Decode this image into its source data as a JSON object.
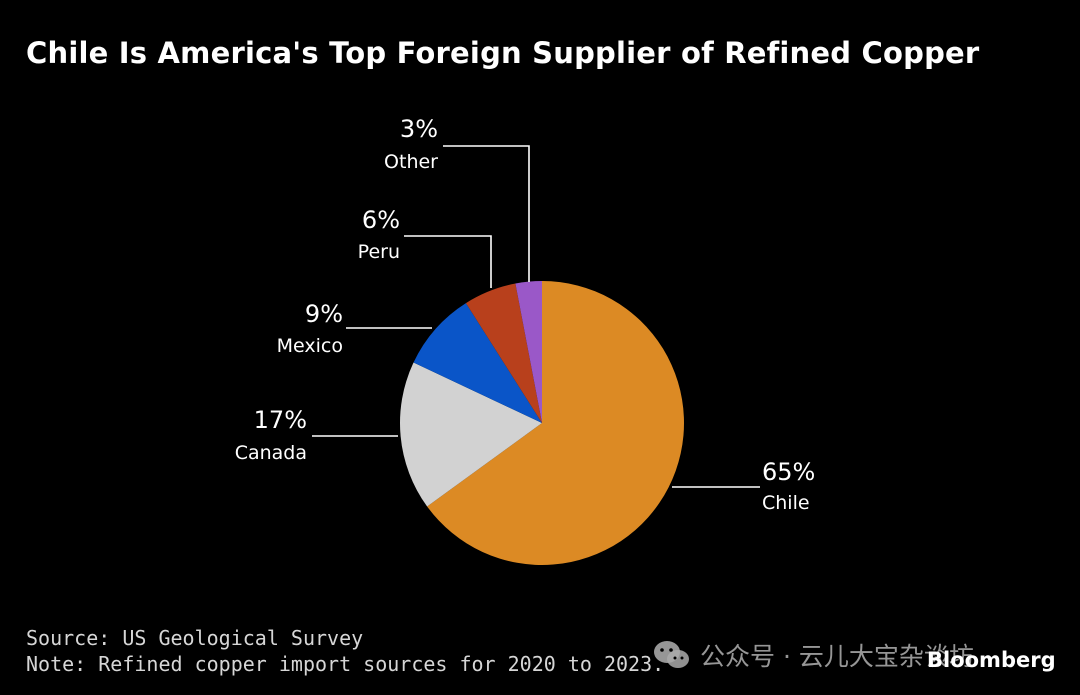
{
  "header": {
    "title": "Chile Is America's Top Foreign Supplier of Refined Copper"
  },
  "footer": {
    "source": "Source: US Geological Survey",
    "note": "Note: Refined copper import sources for 2020 to 2023.",
    "brand": "Bloomberg",
    "watermark": "公众号 · 云儿大宝杂谈坊",
    "watermark_icon": "wechat-icon"
  },
  "chart_data": {
    "type": "pie",
    "title": "Chile Is America's Top Foreign Supplier of Refined Copper",
    "start_angle_deg": 0,
    "direction": "clockwise",
    "slices": [
      {
        "label": "Chile",
        "value": 65,
        "pct_label": "65%",
        "color": "#dc8a24"
      },
      {
        "label": "Canada",
        "value": 17,
        "pct_label": "17%",
        "color": "#d2d2d2"
      },
      {
        "label": "Mexico",
        "value": 9,
        "pct_label": "9%",
        "color": "#0a55c8"
      },
      {
        "label": "Peru",
        "value": 6,
        "pct_label": "6%",
        "color": "#b8401c"
      },
      {
        "label": "Other",
        "value": 3,
        "pct_label": "3%",
        "color": "#9a58c8"
      }
    ],
    "legend": "none"
  }
}
